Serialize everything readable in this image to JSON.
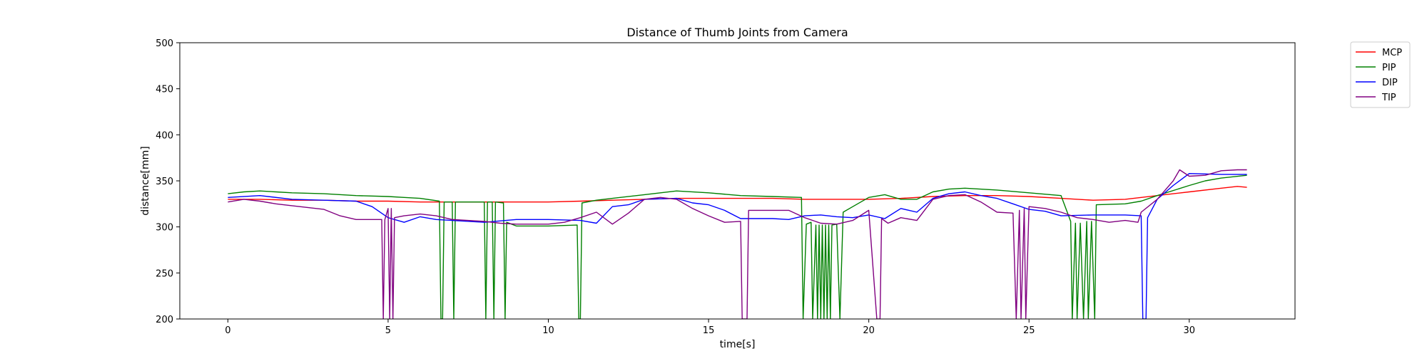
{
  "chart_data": {
    "type": "line",
    "title": "Distance of Thumb Joints from Camera",
    "xlabel": "time[s]",
    "ylabel": "distance[mm]",
    "xlim": [
      -1.5,
      33.3
    ],
    "ylim": [
      200,
      500
    ],
    "xticks": [
      0,
      5,
      10,
      15,
      20,
      25,
      30
    ],
    "yticks": [
      200,
      250,
      300,
      350,
      400,
      450,
      500
    ],
    "grid": false,
    "legend_position": "outside-top-right",
    "series": [
      {
        "name": "MCP",
        "color": "#ff0000",
        "points": [
          [
            0,
            330
          ],
          [
            1,
            330
          ],
          [
            2,
            329
          ],
          [
            3,
            329
          ],
          [
            4,
            328
          ],
          [
            5,
            328
          ],
          [
            6,
            327
          ],
          [
            7,
            327
          ],
          [
            8,
            327
          ],
          [
            9,
            327
          ],
          [
            10,
            327
          ],
          [
            11,
            328
          ],
          [
            12,
            329
          ],
          [
            13,
            330
          ],
          [
            14,
            331
          ],
          [
            15,
            331
          ],
          [
            16,
            331
          ],
          [
            17,
            331
          ],
          [
            18,
            330
          ],
          [
            19,
            330
          ],
          [
            20,
            330
          ],
          [
            21,
            331
          ],
          [
            22,
            333
          ],
          [
            23,
            334
          ],
          [
            24,
            334
          ],
          [
            25,
            333
          ],
          [
            26,
            331
          ],
          [
            27,
            329
          ],
          [
            28,
            330
          ],
          [
            29,
            334
          ],
          [
            30,
            338
          ],
          [
            31,
            342
          ],
          [
            31.5,
            344
          ],
          [
            31.8,
            343
          ]
        ]
      },
      {
        "name": "PIP",
        "color": "#008000",
        "points": [
          [
            0,
            336
          ],
          [
            0.5,
            338
          ],
          [
            1,
            339
          ],
          [
            1.5,
            338
          ],
          [
            2,
            337
          ],
          [
            3,
            336
          ],
          [
            4,
            334
          ],
          [
            5,
            333
          ],
          [
            5.5,
            332
          ],
          [
            6,
            331
          ],
          [
            6.6,
            328
          ],
          [
            6.65,
            200
          ],
          [
            6.7,
            200
          ],
          [
            6.75,
            327
          ],
          [
            7,
            327
          ],
          [
            7.05,
            200
          ],
          [
            7.1,
            327
          ],
          [
            8,
            327
          ],
          [
            8.05,
            200
          ],
          [
            8.1,
            327
          ],
          [
            8.25,
            327
          ],
          [
            8.3,
            200
          ],
          [
            8.35,
            327
          ],
          [
            8.6,
            326
          ],
          [
            8.65,
            200
          ],
          [
            8.7,
            305
          ],
          [
            9,
            301
          ],
          [
            10,
            301
          ],
          [
            10.9,
            302
          ],
          [
            10.95,
            200
          ],
          [
            11,
            200
          ],
          [
            11.05,
            326
          ],
          [
            11.5,
            329
          ],
          [
            12,
            331
          ],
          [
            13,
            335
          ],
          [
            14,
            339
          ],
          [
            15,
            337
          ],
          [
            16,
            334
          ],
          [
            17,
            333
          ],
          [
            17.9,
            332
          ],
          [
            17.95,
            200
          ],
          [
            18.05,
            303
          ],
          [
            18.2,
            305
          ],
          [
            18.25,
            200
          ],
          [
            18.35,
            302
          ],
          [
            18.4,
            200
          ],
          [
            18.45,
            302
          ],
          [
            18.5,
            200
          ],
          [
            18.55,
            302
          ],
          [
            18.6,
            200
          ],
          [
            18.65,
            302
          ],
          [
            18.7,
            200
          ],
          [
            18.75,
            302
          ],
          [
            18.8,
            200
          ],
          [
            18.85,
            302
          ],
          [
            19,
            303
          ],
          [
            19.1,
            200
          ],
          [
            19.2,
            316
          ],
          [
            19.5,
            322
          ],
          [
            20,
            332
          ],
          [
            20.5,
            335
          ],
          [
            21,
            330
          ],
          [
            21.5,
            330
          ],
          [
            22,
            338
          ],
          [
            22.5,
            341
          ],
          [
            23,
            342
          ],
          [
            24,
            340
          ],
          [
            25,
            337
          ],
          [
            26,
            334
          ],
          [
            26.3,
            306
          ],
          [
            26.35,
            200
          ],
          [
            26.45,
            304
          ],
          [
            26.5,
            200
          ],
          [
            26.6,
            304
          ],
          [
            26.7,
            200
          ],
          [
            26.8,
            306
          ],
          [
            26.85,
            200
          ],
          [
            26.95,
            306
          ],
          [
            27.05,
            200
          ],
          [
            27.1,
            324
          ],
          [
            28,
            325
          ],
          [
            28.5,
            328
          ],
          [
            29,
            334
          ],
          [
            30,
            345
          ],
          [
            30.5,
            350
          ],
          [
            31,
            353
          ],
          [
            31.8,
            356
          ]
        ]
      },
      {
        "name": "DIP",
        "color": "#0000ff",
        "points": [
          [
            0,
            332
          ],
          [
            1,
            334
          ],
          [
            2,
            330
          ],
          [
            3,
            329
          ],
          [
            4,
            328
          ],
          [
            4.5,
            322
          ],
          [
            5,
            310
          ],
          [
            5.5,
            305
          ],
          [
            6,
            311
          ],
          [
            6.5,
            308
          ],
          [
            7,
            307
          ],
          [
            8,
            305
          ],
          [
            9,
            308
          ],
          [
            10,
            308
          ],
          [
            11,
            307
          ],
          [
            11.5,
            304
          ],
          [
            12,
            322
          ],
          [
            12.5,
            324
          ],
          [
            13,
            330
          ],
          [
            14,
            331
          ],
          [
            14.5,
            326
          ],
          [
            15,
            324
          ],
          [
            15.5,
            318
          ],
          [
            16,
            309
          ],
          [
            17,
            309
          ],
          [
            17.5,
            308
          ],
          [
            18,
            312
          ],
          [
            18.5,
            313
          ],
          [
            19,
            311
          ],
          [
            19.5,
            310
          ],
          [
            20,
            313
          ],
          [
            20.5,
            309
          ],
          [
            21,
            320
          ],
          [
            21.5,
            316
          ],
          [
            22,
            331
          ],
          [
            22.5,
            336
          ],
          [
            23,
            338
          ],
          [
            23.5,
            334
          ],
          [
            24,
            331
          ],
          [
            24.5,
            325
          ],
          [
            25,
            319
          ],
          [
            25.5,
            317
          ],
          [
            26,
            312
          ],
          [
            27,
            313
          ],
          [
            28,
            313
          ],
          [
            28.5,
            312
          ],
          [
            28.55,
            200
          ],
          [
            28.65,
            200
          ],
          [
            28.7,
            310
          ],
          [
            29,
            330
          ],
          [
            29.5,
            345
          ],
          [
            30,
            358
          ],
          [
            31,
            357
          ],
          [
            31.8,
            357
          ]
        ]
      },
      {
        "name": "TIP",
        "color": "#800080",
        "points": [
          [
            0,
            327
          ],
          [
            0.5,
            330
          ],
          [
            1,
            328
          ],
          [
            1.5,
            325
          ],
          [
            2,
            323
          ],
          [
            3,
            319
          ],
          [
            3.5,
            312
          ],
          [
            4,
            308
          ],
          [
            4.8,
            308
          ],
          [
            4.85,
            200
          ],
          [
            4.9,
            308
          ],
          [
            5,
            320
          ],
          [
            5.05,
            200
          ],
          [
            5.1,
            320
          ],
          [
            5.15,
            200
          ],
          [
            5.2,
            310
          ],
          [
            5.5,
            312
          ],
          [
            6,
            314
          ],
          [
            6.5,
            312
          ],
          [
            7,
            308
          ],
          [
            8,
            306
          ],
          [
            8.5,
            304
          ],
          [
            9,
            303
          ],
          [
            10,
            303
          ],
          [
            10.5,
            305
          ],
          [
            11,
            310
          ],
          [
            11.5,
            316
          ],
          [
            12,
            303
          ],
          [
            12.5,
            315
          ],
          [
            13,
            330
          ],
          [
            13.5,
            332
          ],
          [
            14,
            330
          ],
          [
            14.5,
            320
          ],
          [
            15,
            312
          ],
          [
            15.5,
            305
          ],
          [
            16,
            306
          ],
          [
            16.05,
            200
          ],
          [
            16.2,
            200
          ],
          [
            16.25,
            318
          ],
          [
            17,
            318
          ],
          [
            17.5,
            318
          ],
          [
            18,
            310
          ],
          [
            18.5,
            304
          ],
          [
            19,
            303
          ],
          [
            19.5,
            307
          ],
          [
            20,
            318
          ],
          [
            20.25,
            200
          ],
          [
            20.35,
            200
          ],
          [
            20.4,
            309
          ],
          [
            20.6,
            304
          ],
          [
            21,
            310
          ],
          [
            21.5,
            307
          ],
          [
            22,
            330
          ],
          [
            22.5,
            334
          ],
          [
            23,
            335
          ],
          [
            23.5,
            327
          ],
          [
            24,
            316
          ],
          [
            24.5,
            315
          ],
          [
            24.6,
            200
          ],
          [
            24.7,
            318
          ],
          [
            24.75,
            200
          ],
          [
            24.85,
            320
          ],
          [
            24.9,
            200
          ],
          [
            25,
            322
          ],
          [
            25.5,
            320
          ],
          [
            26,
            316
          ],
          [
            26.5,
            310
          ],
          [
            27,
            308
          ],
          [
            27.5,
            305
          ],
          [
            28,
            307
          ],
          [
            28.4,
            305
          ],
          [
            28.5,
            316
          ],
          [
            29,
            330
          ],
          [
            29.5,
            350
          ],
          [
            29.7,
            362
          ],
          [
            30,
            355
          ],
          [
            30.5,
            356
          ],
          [
            31,
            361
          ],
          [
            31.5,
            362
          ],
          [
            31.8,
            362
          ]
        ]
      }
    ]
  }
}
